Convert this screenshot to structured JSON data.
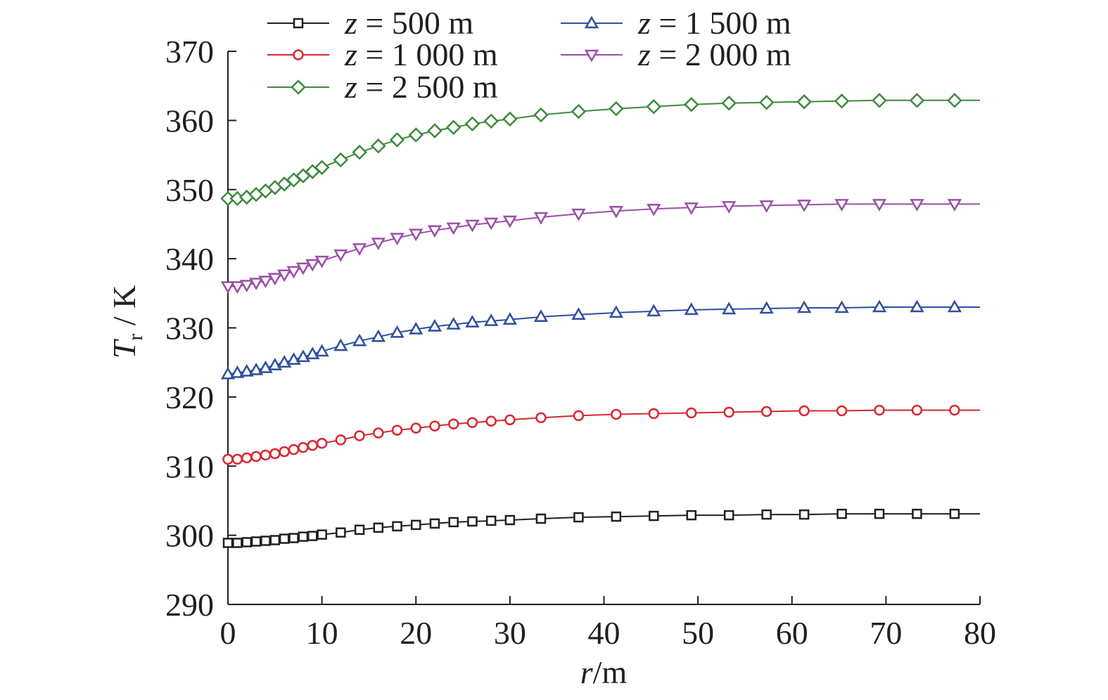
{
  "chart_data": {
    "type": "line",
    "x_axis": {
      "label_var": "r",
      "label_unit": "/m",
      "range": [
        0,
        80
      ],
      "ticks": [
        "0",
        "10",
        "20",
        "30",
        "40",
        "50",
        "60",
        "70",
        "80"
      ],
      "tick_values": [
        0,
        10,
        20,
        30,
        40,
        50,
        60,
        70,
        80
      ]
    },
    "y_axis": {
      "label_var": "T",
      "label_sub": "r",
      "label_unit": " / K",
      "range": [
        290,
        370
      ],
      "ticks": [
        "290",
        "300",
        "310",
        "320",
        "330",
        "340",
        "350",
        "360",
        "370"
      ],
      "tick_values": [
        290,
        300,
        310,
        320,
        330,
        340,
        350,
        360,
        370
      ]
    },
    "grid": false,
    "legend_position": "top",
    "x": [
      0,
      1,
      2,
      3,
      4,
      5,
      6,
      7,
      8,
      9,
      10,
      12,
      14,
      16,
      18,
      20,
      22,
      24,
      26,
      28,
      30,
      33.3,
      37.3,
      41.3,
      45.3,
      49.3,
      53.3,
      57.3,
      61.3,
      65.3,
      69.3,
      73.3,
      77.3
    ],
    "x_end": 80,
    "series": [
      {
        "name": "z = 500 m",
        "name_var": "z",
        "name_rest": " = 500 m",
        "color": "#231f20",
        "marker": "square",
        "values": [
          298.9,
          298.9,
          299.0,
          299.1,
          299.2,
          299.3,
          299.5,
          299.6,
          299.8,
          299.9,
          300.1,
          300.4,
          300.8,
          301.1,
          301.3,
          301.5,
          301.7,
          301.9,
          302.0,
          302.1,
          302.2,
          302.4,
          302.6,
          302.7,
          302.8,
          302.9,
          302.9,
          303.0,
          303.0,
          303.1,
          303.1,
          303.1,
          303.1
        ],
        "end_value": 303.1
      },
      {
        "name": "z = 1 000 m",
        "name_var": "z",
        "name_rest": " = 1 000 m",
        "color": "#d7282f",
        "marker": "circle",
        "values": [
          311.0,
          311.0,
          311.2,
          311.4,
          311.6,
          311.8,
          312.1,
          312.4,
          312.7,
          313.0,
          313.3,
          313.8,
          314.4,
          314.8,
          315.2,
          315.5,
          315.8,
          316.1,
          316.3,
          316.5,
          316.7,
          317.0,
          317.3,
          317.5,
          317.6,
          317.7,
          317.8,
          317.9,
          318.0,
          318.0,
          318.1,
          318.1,
          318.1
        ],
        "end_value": 318.1
      },
      {
        "name": "z = 1 500 m",
        "name_var": "z",
        "name_rest": " = 1 500 m",
        "color": "#2e4fa0",
        "marker": "triangle-up",
        "values": [
          323.3,
          323.5,
          323.7,
          323.9,
          324.2,
          324.6,
          325.0,
          325.4,
          325.8,
          326.2,
          326.6,
          327.4,
          328.1,
          328.7,
          329.3,
          329.8,
          330.2,
          330.5,
          330.8,
          331.0,
          331.2,
          331.6,
          331.9,
          332.2,
          332.4,
          332.6,
          332.7,
          332.8,
          332.9,
          332.9,
          333.0,
          333.0,
          333.0
        ],
        "end_value": 333.0
      },
      {
        "name": "z = 2 000 m",
        "name_var": "z",
        "name_rest": " = 2 000 m",
        "color": "#9b4fa7",
        "marker": "triangle-down",
        "values": [
          336.0,
          336.0,
          336.2,
          336.5,
          336.8,
          337.2,
          337.7,
          338.2,
          338.7,
          339.2,
          339.7,
          340.6,
          341.5,
          342.3,
          343.0,
          343.6,
          344.1,
          344.5,
          344.9,
          345.2,
          345.5,
          346.0,
          346.5,
          346.9,
          347.2,
          347.4,
          347.6,
          347.7,
          347.8,
          347.9,
          347.9,
          347.9,
          347.9
        ],
        "end_value": 347.9
      },
      {
        "name": "z = 2 500 m",
        "name_var": "z",
        "name_rest": " = 2 500 m",
        "color": "#3c8a3c",
        "marker": "diamond",
        "values": [
          348.7,
          348.7,
          348.9,
          349.3,
          349.8,
          350.3,
          350.8,
          351.4,
          352.0,
          352.6,
          353.2,
          354.3,
          355.4,
          356.3,
          357.2,
          357.9,
          358.5,
          359.0,
          359.5,
          359.9,
          360.2,
          360.8,
          361.3,
          361.7,
          362.0,
          362.3,
          362.5,
          362.6,
          362.7,
          362.8,
          362.9,
          362.9,
          362.9
        ],
        "end_value": 362.9
      }
    ]
  }
}
